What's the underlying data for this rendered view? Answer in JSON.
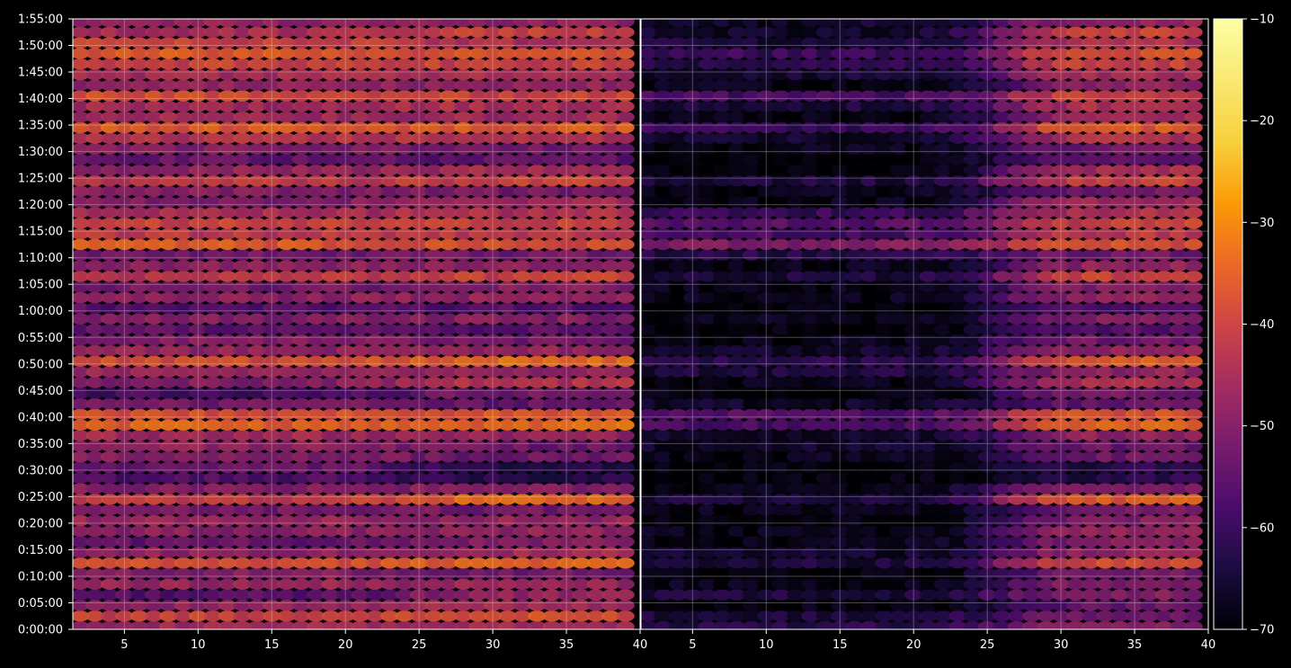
{
  "chart_data": {
    "type": "heatmap",
    "title": "",
    "xlabel": "",
    "ylabel": "",
    "style": "dark",
    "grid": true,
    "colormap": "inferno",
    "colorbar": {
      "position": "right",
      "range": [
        -70,
        -10
      ],
      "ticks": [
        -70,
        -60,
        -50,
        -40,
        -30,
        -20,
        -10
      ],
      "tick_labels": [
        "−70",
        "−60",
        "−50",
        "−40",
        "−30",
        "−20",
        "−10"
      ]
    },
    "panels": [
      {
        "name": "",
        "xlim": [
          1.5,
          40
        ],
        "x_ticks": [
          5,
          10,
          15,
          20,
          25,
          30,
          35
        ]
      },
      {
        "name": "",
        "xlim": [
          1.5,
          40
        ],
        "x_ticks": [
          5,
          10,
          15,
          20,
          25,
          30,
          35
        ]
      }
    ],
    "x_tick_labels": [
      "5",
      "10",
      "15",
      "20",
      "25",
      "30",
      "35",
      "40",
      "5",
      "10",
      "15",
      "20",
      "25",
      "30",
      "35",
      "40"
    ],
    "y_range_minutes": [
      0,
      115
    ],
    "y_ticks_minutes": [
      0,
      5,
      10,
      15,
      20,
      25,
      30,
      35,
      40,
      45,
      50,
      55,
      60,
      65,
      70,
      75,
      80,
      85,
      90,
      95,
      100,
      105,
      110,
      115
    ],
    "y_tick_labels": [
      "0:00:00",
      "0:05:00",
      "0:10:00",
      "0:15:00",
      "0:20:00",
      "0:25:00",
      "0:30:00",
      "0:35:00",
      "0:40:00",
      "0:45:00",
      "0:50:00",
      "0:55:00",
      "1:00:00",
      "1:05:00",
      "1:10:00",
      "1:15:00",
      "1:20:00",
      "1:25:00",
      "1:30:00",
      "1:35:00",
      "1:40:00",
      "1:45:00",
      "1:50:00",
      "1:55:00"
    ],
    "channels": [
      2,
      3,
      4,
      5,
      6,
      7,
      8,
      9,
      10,
      11,
      12,
      13,
      14,
      15,
      16,
      17,
      18,
      19,
      20,
      21,
      22,
      23,
      24,
      25,
      26,
      27,
      28,
      29,
      30,
      31,
      32,
      33,
      34,
      35,
      36,
      37,
      38,
      39
    ],
    "rows_minutes": [
      0.5,
      2.5,
      4.5,
      6.5,
      8.5,
      10.5,
      12.5,
      14.5,
      16.5,
      18.5,
      20.5,
      22.5,
      24.5,
      26.5,
      28.5,
      30.5,
      32.5,
      34.5,
      36.5,
      38.5,
      40.5,
      42.5,
      44.5,
      46.5,
      48.5,
      50.5,
      52.5,
      54.5,
      56.5,
      58.5,
      60.5,
      62.5,
      64.5,
      66.5,
      68.5,
      70.5,
      72.5,
      74.5,
      76.5,
      78.5,
      80.5,
      82.5,
      84.5,
      86.5,
      88.5,
      90.5,
      92.5,
      94.5,
      96.5,
      98.5,
      100.5,
      102.5,
      104.5,
      106.5,
      108.5,
      110.5,
      112.5,
      114.5
    ],
    "levels_panel_left_low": [
      -46,
      -40,
      -48,
      -56,
      -47,
      -50,
      -38,
      -48,
      -54,
      -49,
      -47,
      -52,
      -41,
      -50,
      -57,
      -54,
      -50,
      -48,
      -46,
      -35,
      -38,
      -52,
      -58,
      -50,
      -47,
      -38,
      -48,
      -50,
      -55,
      -50,
      -56,
      -49,
      -52,
      -42,
      -49,
      -52,
      -36,
      -42,
      -40,
      -45,
      -50,
      -50,
      -42,
      -48,
      -54,
      -50,
      -43,
      -36,
      -46,
      -46,
      -38,
      -48,
      -45,
      -40,
      -36,
      -40,
      -45,
      -48
    ],
    "levels_panel_left_high": [
      -46,
      -38,
      -45,
      -48,
      -47,
      -52,
      -34,
      -46,
      -50,
      -48,
      -48,
      -52,
      -34,
      -50,
      -62,
      -62,
      -53,
      -53,
      -48,
      -34,
      -37,
      -54,
      -52,
      -44,
      -48,
      -34,
      -48,
      -52,
      -56,
      -50,
      -56,
      -48,
      -50,
      -40,
      -48,
      -52,
      -38,
      -42,
      -40,
      -44,
      -46,
      -52,
      -40,
      -45,
      -55,
      -52,
      -44,
      -36,
      -46,
      -44,
      -40,
      -48,
      -45,
      -40,
      -38,
      -44,
      -40,
      -48
    ],
    "levels_panel_right_low": [
      -62,
      -64,
      -68,
      -64,
      -68,
      -70,
      -64,
      -66,
      -68,
      -68,
      -70,
      -68,
      -64,
      -68,
      -70,
      -70,
      -68,
      -66,
      -66,
      -58,
      -56,
      -66,
      -70,
      -68,
      -64,
      -62,
      -66,
      -68,
      -70,
      -68,
      -70,
      -68,
      -68,
      -64,
      -68,
      -62,
      -50,
      -58,
      -56,
      -60,
      -68,
      -68,
      -64,
      -70,
      -70,
      -68,
      -66,
      -60,
      -68,
      -64,
      -58,
      -68,
      -65,
      -62,
      -60,
      -64,
      -66,
      -66
    ],
    "levels_panel_right_high": [
      -50,
      -52,
      -54,
      -50,
      -50,
      -52,
      -38,
      -48,
      -50,
      -48,
      -50,
      -52,
      -36,
      -50,
      -62,
      -62,
      -53,
      -53,
      -48,
      -34,
      -37,
      -54,
      -52,
      -44,
      -48,
      -36,
      -48,
      -52,
      -56,
      -50,
      -56,
      -48,
      -50,
      -40,
      -48,
      -52,
      -38,
      -42,
      -40,
      -44,
      -46,
      -52,
      -40,
      -45,
      -55,
      -52,
      -44,
      -36,
      -46,
      -44,
      -40,
      -48,
      -45,
      -40,
      -38,
      -44,
      -40,
      -48
    ],
    "channel_transition": {
      "panel_left": 24,
      "panel_right": 26
    }
  }
}
